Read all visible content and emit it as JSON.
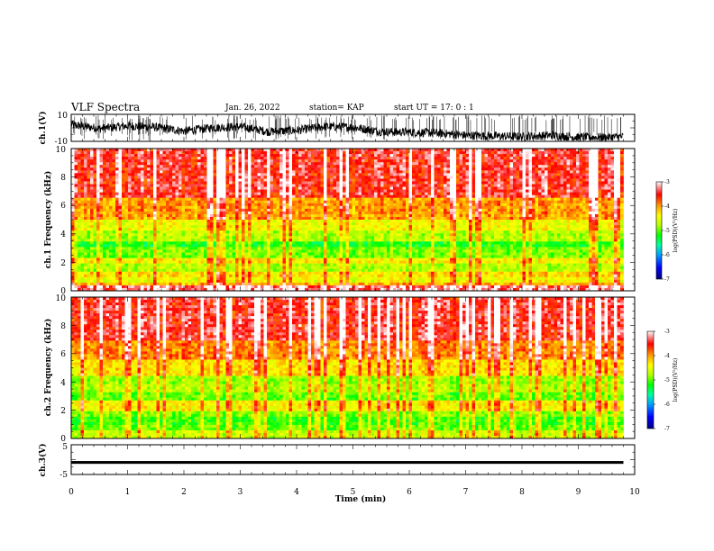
{
  "header": {
    "title": "VLF Spectra",
    "date": "Jan. 26, 2022",
    "station": "station= KAP",
    "start_ut": "start UT =  17: 0  : 1"
  },
  "chart_data": [
    {
      "type": "line",
      "panel": "ch1-waveform",
      "ylabel": "ch.1(V)",
      "ylim": [
        -10,
        10
      ],
      "yticks": [
        "10",
        "-10"
      ],
      "xlim": [
        0,
        10
      ],
      "x_end": 9.8,
      "y_mean_profile": [
        {
          "x": 0.0,
          "y": 2.5
        },
        {
          "x": 0.5,
          "y": -0.5
        },
        {
          "x": 1.0,
          "y": 1.5
        },
        {
          "x": 1.5,
          "y": 0.5
        },
        {
          "x": 2.0,
          "y": -2.5
        },
        {
          "x": 2.5,
          "y": 0.0
        },
        {
          "x": 3.0,
          "y": 1.0
        },
        {
          "x": 3.5,
          "y": -3.0
        },
        {
          "x": 4.0,
          "y": -2.0
        },
        {
          "x": 4.5,
          "y": 1.0
        },
        {
          "x": 5.0,
          "y": 0.5
        },
        {
          "x": 5.5,
          "y": -3.0
        },
        {
          "x": 6.0,
          "y": -3.5
        },
        {
          "x": 6.5,
          "y": -4.0
        },
        {
          "x": 7.0,
          "y": -6.0
        },
        {
          "x": 7.5,
          "y": -6.5
        },
        {
          "x": 8.0,
          "y": -7.0
        },
        {
          "x": 8.5,
          "y": -6.0
        },
        {
          "x": 9.0,
          "y": -7.5
        },
        {
          "x": 9.5,
          "y": -7.5
        },
        {
          "x": 9.8,
          "y": -7.0
        }
      ],
      "spike_max": 10,
      "spike_min": -10
    },
    {
      "type": "heatmap",
      "panel": "ch1-spectrogram",
      "ylabel": "ch.1 Frequency (kHz)",
      "ylim": [
        0,
        10
      ],
      "yticks": [
        "0",
        "2",
        "4",
        "6",
        "8",
        "10"
      ],
      "xlim": [
        0,
        10
      ],
      "x_end": 9.8,
      "log_psd_by_band": [
        {
          "f_from": 0.0,
          "f_to": 0.3,
          "value": -3.2
        },
        {
          "f_from": 0.3,
          "f_to": 0.6,
          "value": -4.0
        },
        {
          "f_from": 0.6,
          "f_to": 1.0,
          "value": -4.4
        },
        {
          "f_from": 1.0,
          "f_to": 1.4,
          "value": -4.2
        },
        {
          "f_from": 1.4,
          "f_to": 2.0,
          "value": -4.7
        },
        {
          "f_from": 2.0,
          "f_to": 2.4,
          "value": -4.3
        },
        {
          "f_from": 2.4,
          "f_to": 3.0,
          "value": -4.9
        },
        {
          "f_from": 3.0,
          "f_to": 3.5,
          "value": -5.2
        },
        {
          "f_from": 3.5,
          "f_to": 4.2,
          "value": -4.7
        },
        {
          "f_from": 4.2,
          "f_to": 5.0,
          "value": -4.4
        },
        {
          "f_from": 5.0,
          "f_to": 6.5,
          "value": -3.9
        },
        {
          "f_from": 6.5,
          "f_to": 10.0,
          "value": -3.4
        }
      ]
    },
    {
      "type": "heatmap",
      "panel": "ch2-spectrogram",
      "ylabel": "ch.2 Frequency (kHz)",
      "ylim": [
        0,
        10
      ],
      "yticks": [
        "0",
        "2",
        "4",
        "6",
        "8",
        "10"
      ],
      "xlim": [
        0,
        10
      ],
      "x_end": 9.8,
      "log_psd_by_band": [
        {
          "f_from": 0.0,
          "f_to": 0.5,
          "value": -4.6
        },
        {
          "f_from": 0.5,
          "f_to": 1.0,
          "value": -5.0
        },
        {
          "f_from": 1.0,
          "f_to": 1.5,
          "value": -5.1
        },
        {
          "f_from": 1.5,
          "f_to": 2.0,
          "value": -4.9
        },
        {
          "f_from": 2.0,
          "f_to": 2.6,
          "value": -4.3
        },
        {
          "f_from": 2.6,
          "f_to": 3.2,
          "value": -5.0
        },
        {
          "f_from": 3.2,
          "f_to": 3.8,
          "value": -4.7
        },
        {
          "f_from": 3.8,
          "f_to": 4.4,
          "value": -4.8
        },
        {
          "f_from": 4.4,
          "f_to": 5.5,
          "value": -4.2
        },
        {
          "f_from": 5.5,
          "f_to": 7.0,
          "value": -3.8
        },
        {
          "f_from": 7.0,
          "f_to": 10.0,
          "value": -3.4
        }
      ]
    },
    {
      "type": "line",
      "panel": "ch3-waveform",
      "ylabel": "ch.3(V)",
      "ylim": [
        -5,
        5
      ],
      "yticks": [
        "5",
        "-5"
      ],
      "xlim": [
        0,
        10
      ],
      "x_end": 9.8,
      "band_low": -1.5,
      "band_high": -0.5
    }
  ],
  "colorbars": [
    {
      "name": "ch1-colorbar",
      "label": "log(PSD)(V²/Hz)",
      "range": [
        -7,
        -3
      ],
      "ticks": [
        "-3",
        "-4",
        "-5",
        "-6",
        "-7"
      ]
    },
    {
      "name": "ch2-colorbar",
      "label": "log(PSD)(V²/Hz)",
      "range": [
        -7,
        -3
      ],
      "ticks": [
        "-3",
        "-4",
        "-5",
        "-6",
        "-7"
      ]
    }
  ],
  "xaxis": {
    "label": "Time (min)",
    "ticks": [
      "0",
      "1",
      "2",
      "3",
      "4",
      "5",
      "6",
      "7",
      "8",
      "9",
      "10"
    ]
  },
  "colors": {
    "colormap": [
      "#000080",
      "#0000ff",
      "#00a0ff",
      "#00ffa0",
      "#00ff00",
      "#b0ff00",
      "#ffff00",
      "#ffa000",
      "#ff0000",
      "#ffffff"
    ]
  }
}
